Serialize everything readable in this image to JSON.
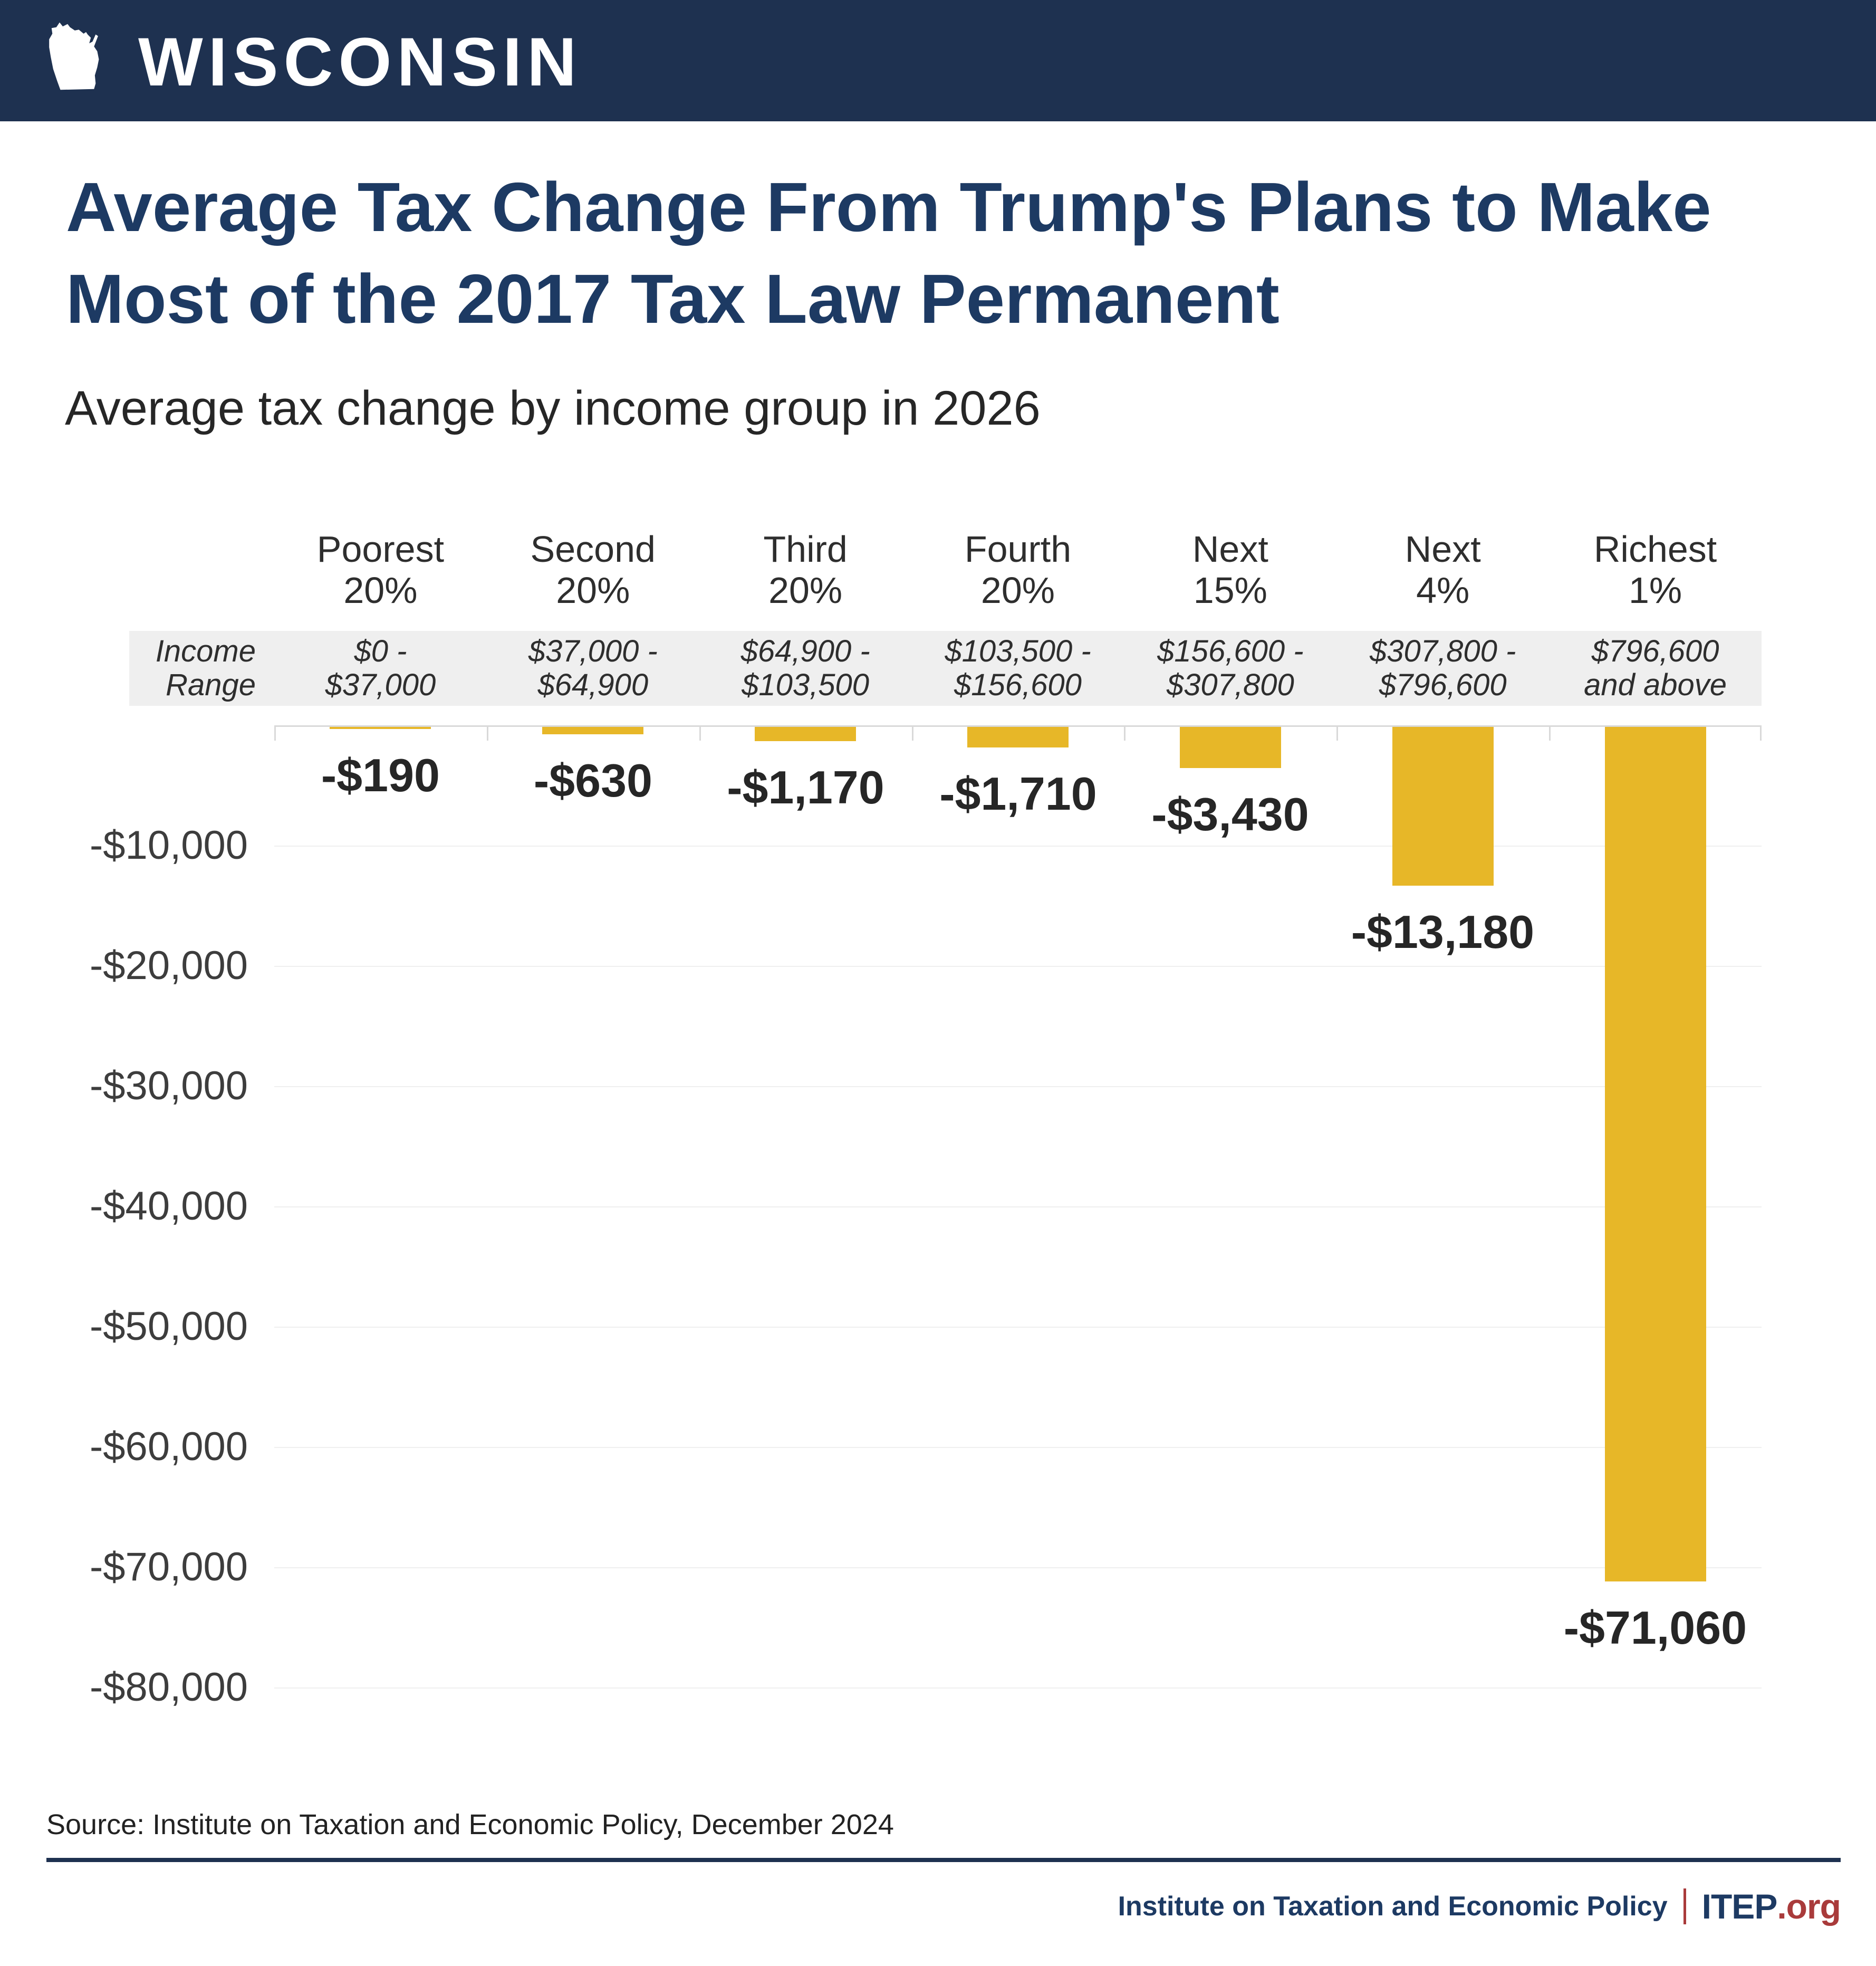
{
  "header": {
    "state_label": "WISCONSIN"
  },
  "title": "Average Tax Change From Trump's Plans to Make Most of the 2017 Tax Law Permanent",
  "title_lines": [
    "Average Tax Change From Trump's Plans to Make",
    "Most of the 2017 Tax Law Permanent"
  ],
  "subtitle": "Average tax change by income group in 2026",
  "income_row": {
    "label_line1": "Income",
    "label_line2": "Range"
  },
  "source_note": "Source: Institute on Taxation and Economic Policy, December 2024",
  "footer": {
    "org_name": "Institute on Taxation and Economic Policy",
    "separator": "|",
    "brand": "ITEP",
    "brand_suffix": ".org"
  },
  "colors": {
    "header_navy": "#1e3150",
    "title_navy": "#1d3a63",
    "bar_gold": "#e7b728",
    "band_gray": "#efefef",
    "brand_red": "#a93b3b",
    "grid_light": "#efefef",
    "axis_line": "#d9d9d9"
  },
  "chart_data": {
    "type": "bar",
    "title": "Average Tax Change From Trump's Plans to Make Most of the 2017 Tax Law Permanent",
    "subtitle": "Average tax change by income group in 2026",
    "unit": "USD",
    "year": "2026",
    "categories": [
      "Poorest 20%",
      "Second 20%",
      "Third 20%",
      "Fourth 20%",
      "Next 15%",
      "Next 4%",
      "Richest 1%"
    ],
    "category_lines": [
      [
        "Poorest",
        "20%"
      ],
      [
        "Second",
        "20%"
      ],
      [
        "Third",
        "20%"
      ],
      [
        "Fourth",
        "20%"
      ],
      [
        "Next",
        "15%"
      ],
      [
        "Next",
        "4%"
      ],
      [
        "Richest",
        "1%"
      ]
    ],
    "income_ranges": [
      [
        "$0 -",
        "$37,000"
      ],
      [
        "$37,000 -",
        "$64,900"
      ],
      [
        "$64,900 -",
        "$103,500"
      ],
      [
        "$103,500 -",
        "$156,600"
      ],
      [
        "$156,600 -",
        "$307,800"
      ],
      [
        "$307,800 -",
        "$796,600"
      ],
      [
        "$796,600",
        "and above"
      ]
    ],
    "values": [
      -190,
      -630,
      -1170,
      -1710,
      -3430,
      -13180,
      -71060
    ],
    "value_labels": [
      "-$190",
      "-$630",
      "-$1,170",
      "-$1,710",
      "-$3,430",
      "-$13,180",
      "-$71,060"
    ],
    "ylim": [
      -80000,
      0
    ],
    "ytick_step": -10000,
    "ytick_labels": [
      "-$10,000",
      "-$20,000",
      "-$30,000",
      "-$40,000",
      "-$50,000",
      "-$60,000",
      "-$70,000",
      "-$80,000"
    ],
    "grid": true,
    "legend": false,
    "bar_color": "#e7b728"
  }
}
